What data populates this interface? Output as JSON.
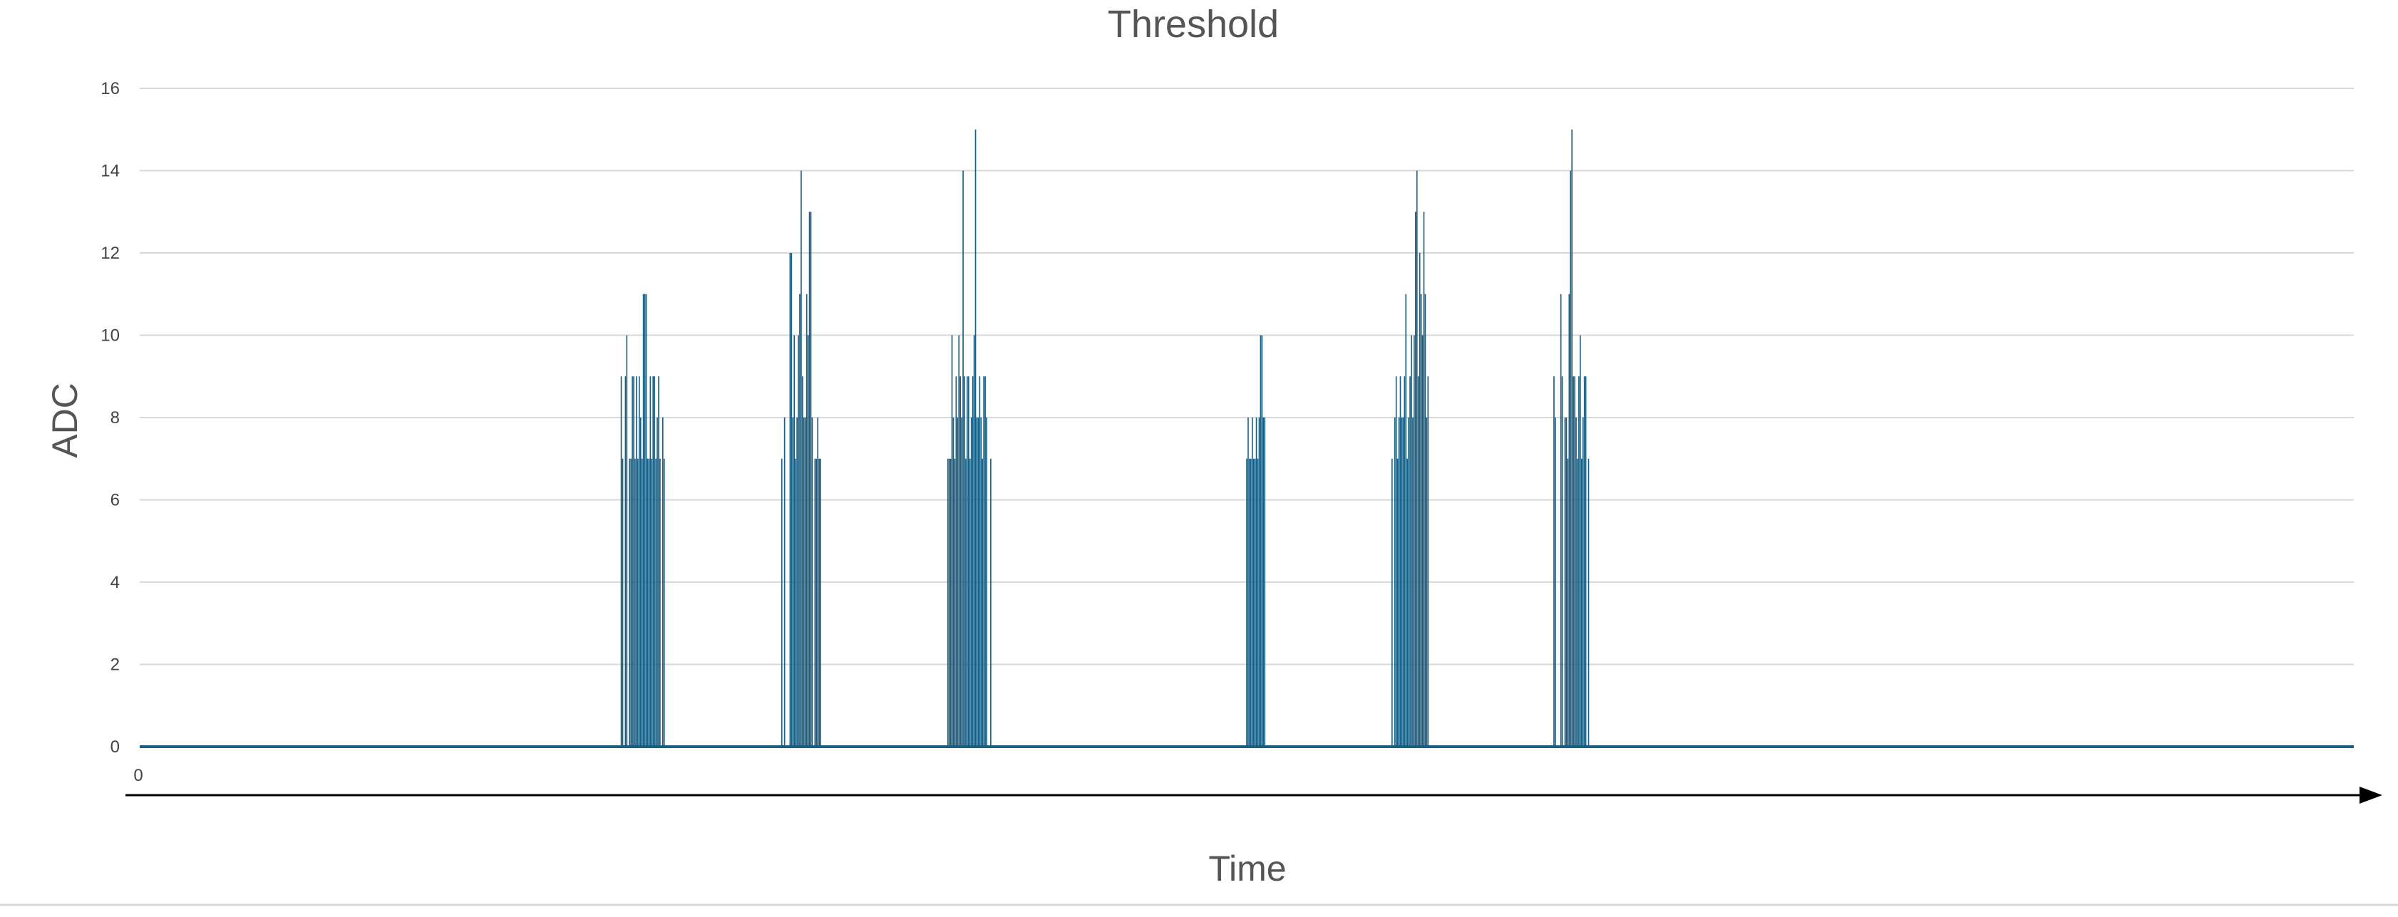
{
  "chart_data": {
    "type": "bar",
    "title": "Threshold",
    "xlabel": "Time",
    "ylabel": "ADC",
    "ylim": [
      0,
      16
    ],
    "yticks": [
      "0",
      "2",
      "4",
      "6",
      "8",
      "10",
      "12",
      "14",
      "16"
    ],
    "xticks": [
      "0"
    ],
    "grid": true,
    "legend": "none",
    "series": [
      {
        "color": "#1a5e82",
        "points": [
          {
            "x": 348,
            "y": 9
          },
          {
            "x": 349,
            "y": 7
          },
          {
            "x": 351,
            "y": 9
          },
          {
            "x": 352,
            "y": 10
          },
          {
            "x": 354,
            "y": 7
          },
          {
            "x": 355,
            "y": 7
          },
          {
            "x": 356,
            "y": 9
          },
          {
            "x": 357,
            "y": 9
          },
          {
            "x": 358,
            "y": 7
          },
          {
            "x": 359,
            "y": 9
          },
          {
            "x": 360,
            "y": 7
          },
          {
            "x": 361,
            "y": 9
          },
          {
            "x": 362,
            "y": 8
          },
          {
            "x": 363,
            "y": 7
          },
          {
            "x": 364,
            "y": 11
          },
          {
            "x": 365,
            "y": 11
          },
          {
            "x": 366,
            "y": 11
          },
          {
            "x": 367,
            "y": 7
          },
          {
            "x": 368,
            "y": 7
          },
          {
            "x": 369,
            "y": 9
          },
          {
            "x": 370,
            "y": 7
          },
          {
            "x": 371,
            "y": 9
          },
          {
            "x": 372,
            "y": 9
          },
          {
            "x": 373,
            "y": 7
          },
          {
            "x": 374,
            "y": 8
          },
          {
            "x": 375,
            "y": 9
          },
          {
            "x": 376,
            "y": 7
          },
          {
            "x": 378,
            "y": 8
          },
          {
            "x": 379,
            "y": 7
          },
          {
            "x": 464,
            "y": 7
          },
          {
            "x": 466,
            "y": 8
          },
          {
            "x": 470,
            "y": 12
          },
          {
            "x": 471,
            "y": 12
          },
          {
            "x": 472,
            "y": 8
          },
          {
            "x": 473,
            "y": 10
          },
          {
            "x": 474,
            "y": 7
          },
          {
            "x": 475,
            "y": 8
          },
          {
            "x": 476,
            "y": 10
          },
          {
            "x": 477,
            "y": 11
          },
          {
            "x": 478,
            "y": 14
          },
          {
            "x": 479,
            "y": 9
          },
          {
            "x": 480,
            "y": 8
          },
          {
            "x": 481,
            "y": 8
          },
          {
            "x": 482,
            "y": 11
          },
          {
            "x": 483,
            "y": 10
          },
          {
            "x": 484,
            "y": 13
          },
          {
            "x": 485,
            "y": 13
          },
          {
            "x": 486,
            "y": 8
          },
          {
            "x": 488,
            "y": 7
          },
          {
            "x": 489,
            "y": 7
          },
          {
            "x": 490,
            "y": 8
          },
          {
            "x": 491,
            "y": 7
          },
          {
            "x": 492,
            "y": 7
          },
          {
            "x": 584,
            "y": 7
          },
          {
            "x": 585,
            "y": 7
          },
          {
            "x": 586,
            "y": 7
          },
          {
            "x": 587,
            "y": 10
          },
          {
            "x": 588,
            "y": 8
          },
          {
            "x": 589,
            "y": 7
          },
          {
            "x": 590,
            "y": 9
          },
          {
            "x": 591,
            "y": 8
          },
          {
            "x": 592,
            "y": 10
          },
          {
            "x": 593,
            "y": 9
          },
          {
            "x": 594,
            "y": 8
          },
          {
            "x": 595,
            "y": 14
          },
          {
            "x": 596,
            "y": 9
          },
          {
            "x": 597,
            "y": 7
          },
          {
            "x": 598,
            "y": 9
          },
          {
            "x": 599,
            "y": 9
          },
          {
            "x": 600,
            "y": 7
          },
          {
            "x": 601,
            "y": 8
          },
          {
            "x": 602,
            "y": 9
          },
          {
            "x": 603,
            "y": 10
          },
          {
            "x": 604,
            "y": 15
          },
          {
            "x": 605,
            "y": 8
          },
          {
            "x": 606,
            "y": 8
          },
          {
            "x": 607,
            "y": 9
          },
          {
            "x": 608,
            "y": 8
          },
          {
            "x": 609,
            "y": 7
          },
          {
            "x": 610,
            "y": 9
          },
          {
            "x": 611,
            "y": 9
          },
          {
            "x": 612,
            "y": 8
          },
          {
            "x": 615,
            "y": 7
          },
          {
            "x": 800,
            "y": 7
          },
          {
            "x": 801,
            "y": 8
          },
          {
            "x": 802,
            "y": 7
          },
          {
            "x": 803,
            "y": 7
          },
          {
            "x": 804,
            "y": 8
          },
          {
            "x": 805,
            "y": 7
          },
          {
            "x": 806,
            "y": 7
          },
          {
            "x": 807,
            "y": 8
          },
          {
            "x": 808,
            "y": 7
          },
          {
            "x": 809,
            "y": 8
          },
          {
            "x": 810,
            "y": 10
          },
          {
            "x": 811,
            "y": 10
          },
          {
            "x": 812,
            "y": 8
          },
          {
            "x": 813,
            "y": 8
          },
          {
            "x": 905,
            "y": 7
          },
          {
            "x": 907,
            "y": 8
          },
          {
            "x": 908,
            "y": 9
          },
          {
            "x": 909,
            "y": 7
          },
          {
            "x": 910,
            "y": 8
          },
          {
            "x": 911,
            "y": 9
          },
          {
            "x": 912,
            "y": 8
          },
          {
            "x": 913,
            "y": 8
          },
          {
            "x": 914,
            "y": 9
          },
          {
            "x": 915,
            "y": 11
          },
          {
            "x": 916,
            "y": 7
          },
          {
            "x": 917,
            "y": 8
          },
          {
            "x": 918,
            "y": 9
          },
          {
            "x": 919,
            "y": 10
          },
          {
            "x": 920,
            "y": 8
          },
          {
            "x": 921,
            "y": 10
          },
          {
            "x": 922,
            "y": 13
          },
          {
            "x": 923,
            "y": 14
          },
          {
            "x": 924,
            "y": 9
          },
          {
            "x": 925,
            "y": 12
          },
          {
            "x": 926,
            "y": 11
          },
          {
            "x": 927,
            "y": 10
          },
          {
            "x": 928,
            "y": 13
          },
          {
            "x": 929,
            "y": 11
          },
          {
            "x": 930,
            "y": 8
          },
          {
            "x": 931,
            "y": 9
          },
          {
            "x": 1022,
            "y": 9
          },
          {
            "x": 1023,
            "y": 8
          },
          {
            "x": 1027,
            "y": 11
          },
          {
            "x": 1028,
            "y": 9
          },
          {
            "x": 1030,
            "y": 8
          },
          {
            "x": 1031,
            "y": 8
          },
          {
            "x": 1032,
            "y": 7
          },
          {
            "x": 1033,
            "y": 11
          },
          {
            "x": 1034,
            "y": 14
          },
          {
            "x": 1035,
            "y": 15
          },
          {
            "x": 1036,
            "y": 9
          },
          {
            "x": 1037,
            "y": 9
          },
          {
            "x": 1038,
            "y": 8
          },
          {
            "x": 1039,
            "y": 7
          },
          {
            "x": 1040,
            "y": 9
          },
          {
            "x": 1041,
            "y": 10
          },
          {
            "x": 1042,
            "y": 7
          },
          {
            "x": 1043,
            "y": 8
          },
          {
            "x": 1044,
            "y": 9
          },
          {
            "x": 1045,
            "y": 9
          },
          {
            "x": 1047,
            "y": 7
          }
        ]
      }
    ]
  }
}
